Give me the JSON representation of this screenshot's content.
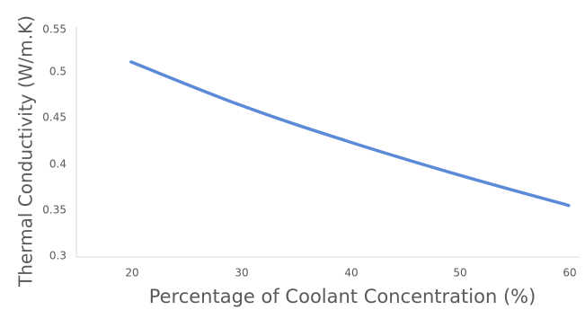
{
  "chart_data": {
    "type": "line",
    "title": "",
    "xlabel": "Percentage of Coolant Concentration (%)",
    "ylabel": "Thermal Conductivity (W/m.K)",
    "x": [
      20,
      30,
      40,
      50,
      60
    ],
    "x_tick_labels": [
      "20",
      "30",
      "40",
      "50",
      "60"
    ],
    "y_tick_labels": [
      "0.55",
      "0.5",
      "0.45",
      "0.4",
      "0.35",
      "0.3"
    ],
    "series": [
      {
        "values": [
          0.512,
          0.465,
          0.425,
          0.389,
          0.356
        ],
        "color": "#5b8ad6"
      }
    ],
    "ylim": [
      0.3,
      0.55
    ],
    "xlim": [
      15,
      61
    ],
    "grid": false,
    "legend": "none"
  }
}
